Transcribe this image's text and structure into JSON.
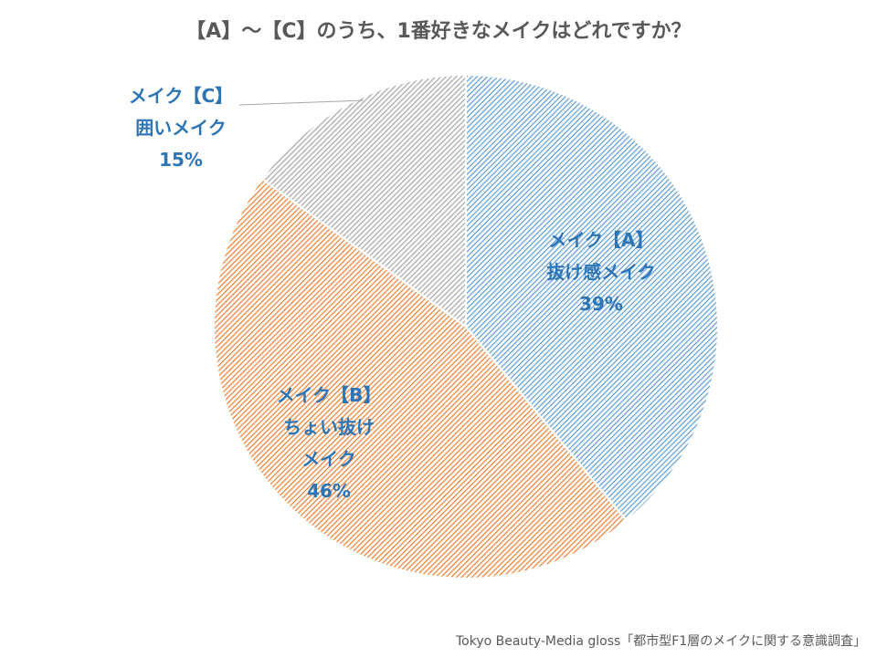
{
  "chart_data": {
    "type": "pie",
    "title": "【A】～【C】のうち、1番好きなメイクはどれですか？",
    "slices": [
      {
        "label_line1": "メイク【A】",
        "label_line2": "抜け感メイク",
        "label_line3": "",
        "percent_label": "39%",
        "value": 39,
        "color": "#5b9bd5"
      },
      {
        "label_line1": "メイク【B】",
        "label_line2": "ちょい抜け",
        "label_line3": "メイク",
        "percent_label": "46%",
        "value": 46,
        "color": "#ed7d31"
      },
      {
        "label_line1": "メイク【C】",
        "label_line2": "囲いメイク",
        "label_line3": "",
        "percent_label": "15%",
        "value": 15,
        "color": "#a5a5a5"
      }
    ],
    "start_angle": "12 o'clock",
    "direction": "clockwise",
    "fill": "diagonal-hatch",
    "label_color": "#2e75b6"
  },
  "source": "Tokyo Beauty-Media gloss「都市型F1層のメイクに関する意識調査」"
}
